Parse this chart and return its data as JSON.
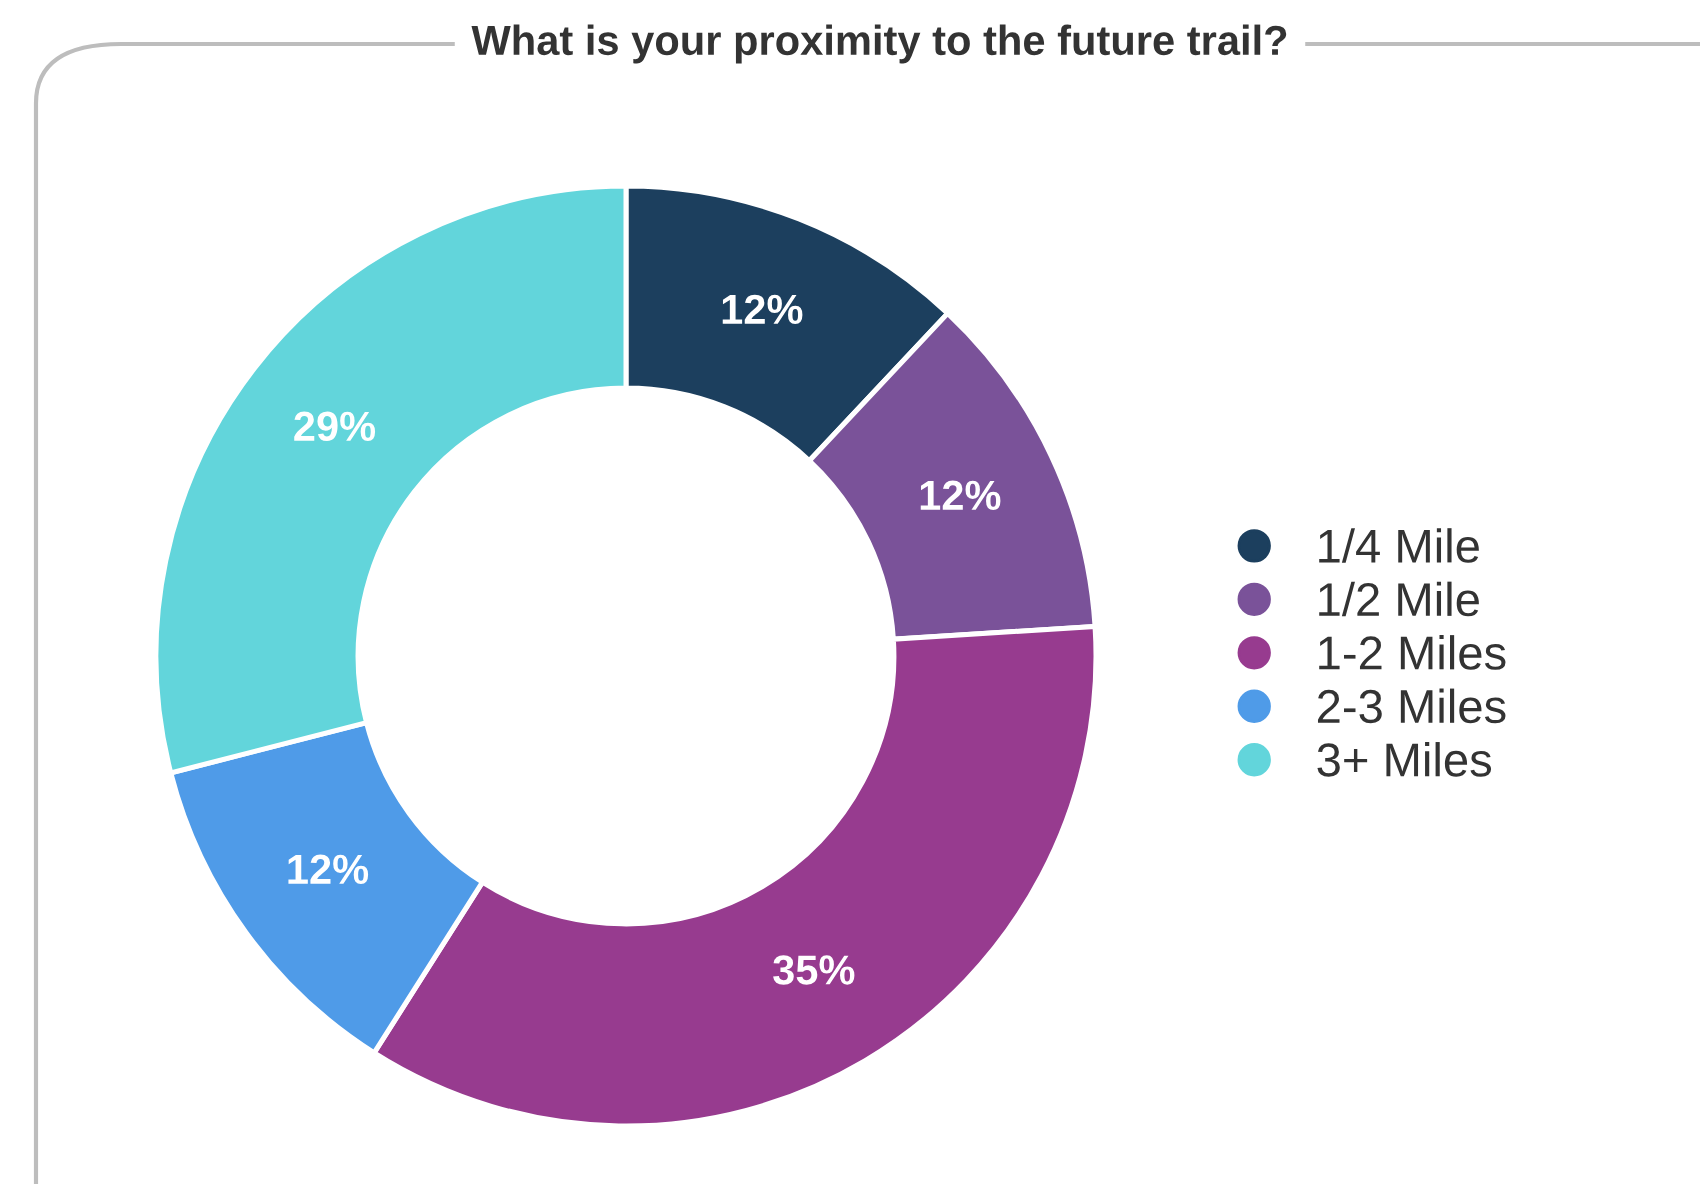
{
  "chart_data": {
    "type": "donut",
    "title": "What is your proximity to the future trail?",
    "categories": [
      "1/4 Mile",
      "1/2 Mile",
      "1-2 Miles",
      "2-3 Miles",
      "3+ Miles"
    ],
    "values": [
      12,
      12,
      35,
      12,
      29
    ],
    "colors": [
      "#1c3f5e",
      "#7a5299",
      "#973b8f",
      "#4f9be8",
      "#62d5db"
    ],
    "value_labels": [
      "12%",
      "12%",
      "35%",
      "12%",
      "29%"
    ],
    "legend": "right"
  }
}
